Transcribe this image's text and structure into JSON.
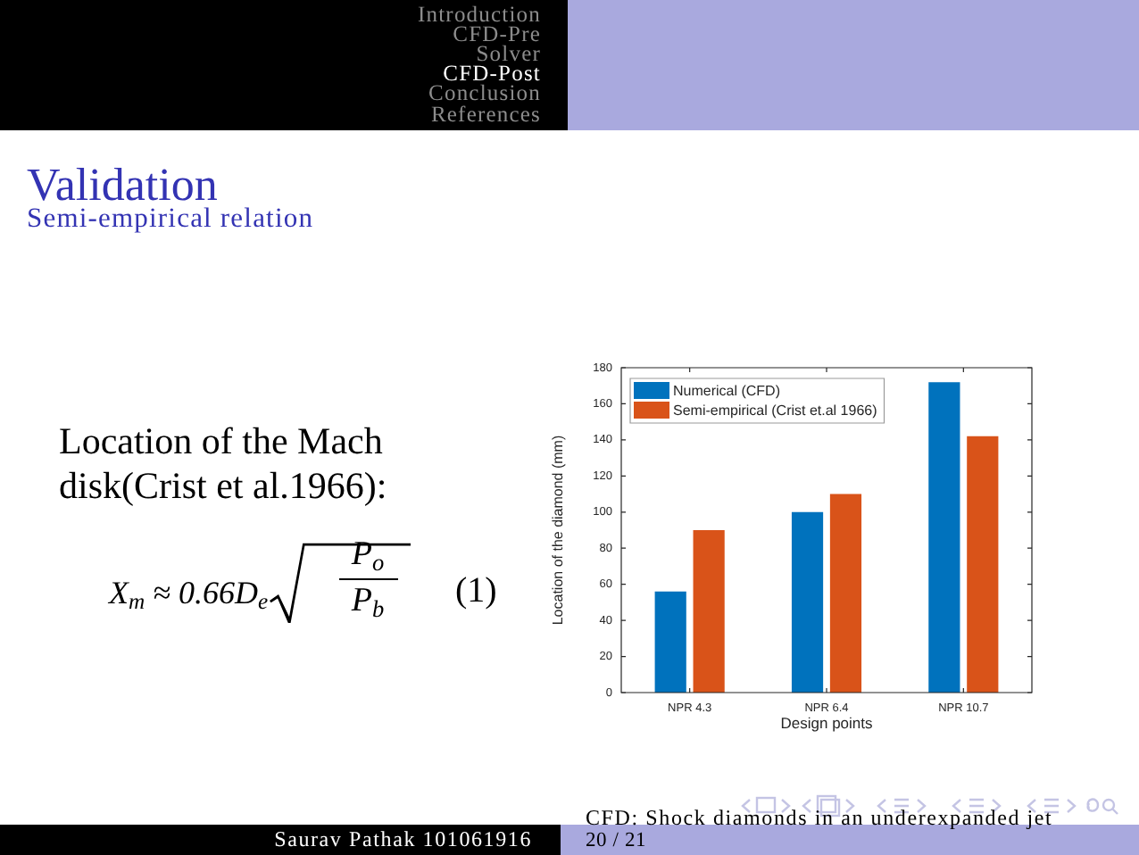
{
  "chart_data": {
    "type": "bar",
    "title": "Validation",
    "subtitle": "Semi-empirical relation",
    "xlabel": "Design points",
    "ylabel": "Location of the diamond (mm)",
    "categories": [
      "NPR 4.3",
      "NPR 6.4",
      "NPR 10.7"
    ],
    "series": [
      {
        "name": "Numerical (CFD)",
        "color": "#0072bd",
        "values": [
          56,
          100,
          172
        ]
      },
      {
        "name": "Semi-empirical (Crist et.al 1966)",
        "color": "#d95319",
        "values": [
          90,
          110,
          142
        ]
      }
    ],
    "ylim": [
      0,
      180
    ],
    "yticks": [
      0,
      20,
      40,
      60,
      80,
      100,
      120,
      140,
      160,
      180
    ],
    "legend": "top left",
    "annotations": [
      "Introduction",
      "CFD-Pre",
      "Solver",
      "CFD-Post",
      "Conclusion",
      "References",
      "Location of the Mach disk(Crist et al.1966):",
      "X$_{m}$ ≈ 0.66D$_{e}$",
      "P$_{o}$",
      "P$_{b}$",
      "(1)",
      "Saurav Pathak 101061916",
      "CFD: Shock diamonds in an underexpanded jet",
      "20 / 21"
    ]
  }
}
